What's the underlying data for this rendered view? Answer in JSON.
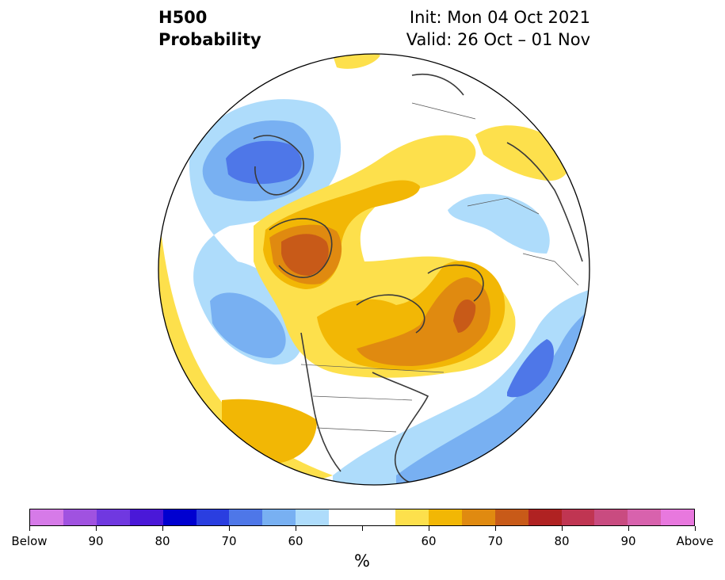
{
  "title": {
    "variable": "H500",
    "product": "Probability",
    "init": "Init: Mon 04 Oct 2021",
    "valid": "Valid: 26 Oct – 01 Nov"
  },
  "map": {
    "projection": "north-polar-stereographic",
    "features": [
      {
        "name": "above-normal-north-pacific-alaska",
        "category": "above",
        "peak_percent": 70
      },
      {
        "name": "above-normal-canada-greenland",
        "category": "above",
        "peak_percent": 70
      },
      {
        "name": "above-normal-southwest-us-mexico",
        "category": "above",
        "peak_percent": 60
      },
      {
        "name": "above-normal-north-siberia",
        "category": "above",
        "peak_percent": 60
      },
      {
        "name": "below-normal-east-asia",
        "category": "below",
        "peak_percent": 70
      },
      {
        "name": "below-normal-north-pacific",
        "category": "below",
        "peak_percent": 60
      },
      {
        "name": "below-normal-north-atlantic",
        "category": "below",
        "peak_percent": 70
      },
      {
        "name": "below-normal-europe-russia",
        "category": "below",
        "peak_percent": 60
      }
    ]
  },
  "colorbar": {
    "colors": [
      "#d67ae8",
      "#a052e0",
      "#7038e0",
      "#4a18d8",
      "#0000d0",
      "#2a3ee0",
      "#4e77e8",
      "#78b0f2",
      "#aedcfb",
      "#ffffff",
      "#ffffff",
      "#fde04c",
      "#f2b705",
      "#e08a10",
      "#c85a18",
      "#b02222",
      "#c03552",
      "#c94b80",
      "#d862ad",
      "#e878de"
    ],
    "tick_labels": [
      "Below",
      "90",
      "80",
      "70",
      "60",
      "60",
      "70",
      "80",
      "90",
      "Above"
    ],
    "unit": "%"
  }
}
